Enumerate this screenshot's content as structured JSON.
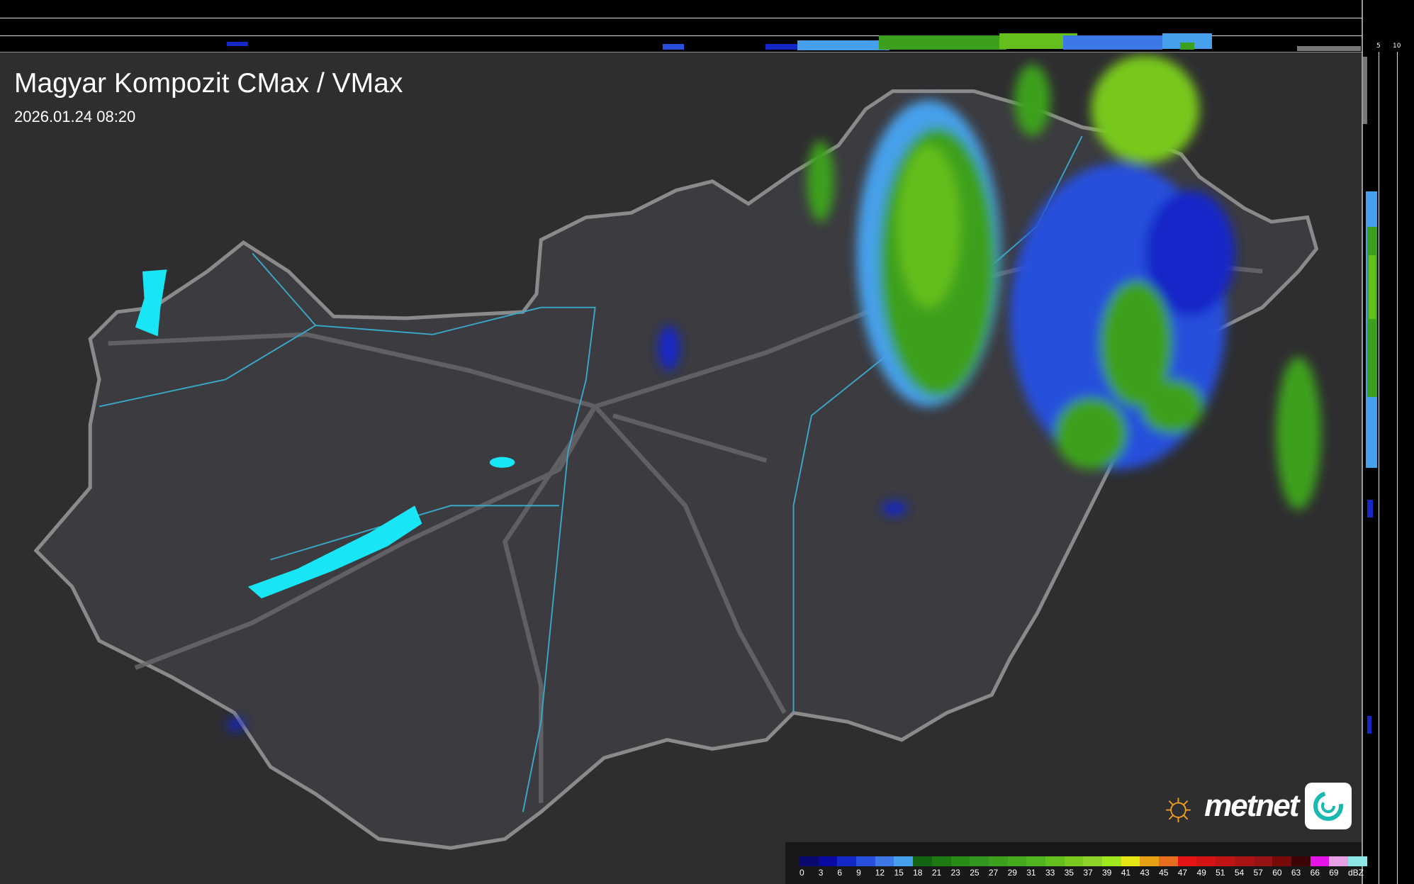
{
  "title": "Magyar Kompozit CMax / VMax",
  "datetime": "2026.01.24 08:20",
  "side_profile_ticks": {
    "top": [
      "10",
      "5"
    ],
    "right": [
      "5",
      "10"
    ]
  },
  "legend": {
    "unit": "dBZ",
    "labels": [
      "0",
      "3",
      "6",
      "9",
      "12",
      "15",
      "18",
      "21",
      "23",
      "25",
      "27",
      "29",
      "31",
      "33",
      "35",
      "37",
      "39",
      "41",
      "43",
      "45",
      "47",
      "49",
      "51",
      "54",
      "57",
      "60",
      "63",
      "66",
      "69"
    ],
    "colors": [
      "#0a0a6e",
      "#0a0aa0",
      "#1428c8",
      "#2850dc",
      "#3c78e6",
      "#46a0eb",
      "#146414",
      "#1e7814",
      "#288c14",
      "#32961e",
      "#3ca01e",
      "#46aa1e",
      "#50b41e",
      "#64be1e",
      "#78c81e",
      "#8cd228",
      "#a0e61e",
      "#e6e614",
      "#e6a014",
      "#e66e1e",
      "#e61414",
      "#d21414",
      "#be1414",
      "#aa1414",
      "#961414",
      "#780a0a",
      "#3c0505",
      "#e614e6",
      "#e6a0e6",
      "#8ce6e6"
    ]
  },
  "logo": {
    "text": "metnet"
  },
  "colors": {
    "background": "#2e2e30",
    "country": "#3b3b40",
    "border": "#8a8a8a",
    "rivers": "#3aa8c8",
    "lakes": "#19e6f5"
  }
}
